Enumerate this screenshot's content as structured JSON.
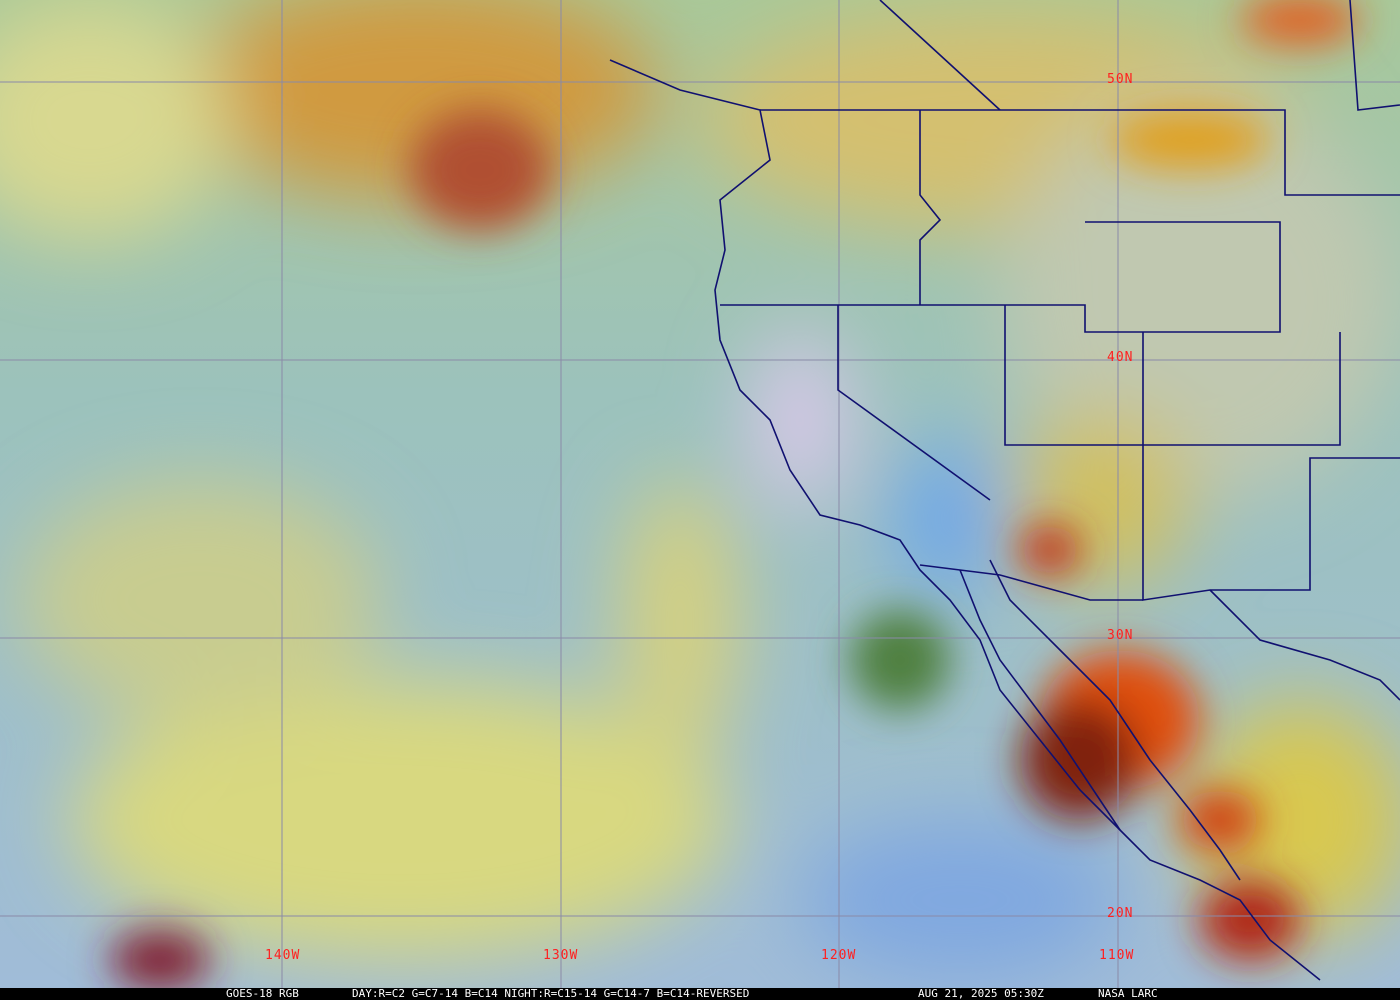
{
  "map": {
    "latitude_labels": [
      "50N",
      "40N",
      "30N",
      "20N"
    ],
    "longitude_labels": [
      "140W",
      "130W",
      "120W",
      "110W"
    ],
    "label_color": "#ff2020",
    "border_color": "#101070",
    "grid_color": "#8a8aa8"
  },
  "caption": {
    "product": "GOES-18 RGB",
    "recipe": "DAY:R=C2 G=C7-14 B=C14 NIGHT:R=C15-14 G=C14-7 B=C14-REVERSED",
    "timestamp": "AUG 21, 2025 05:30Z",
    "source": "NASA LARC"
  }
}
